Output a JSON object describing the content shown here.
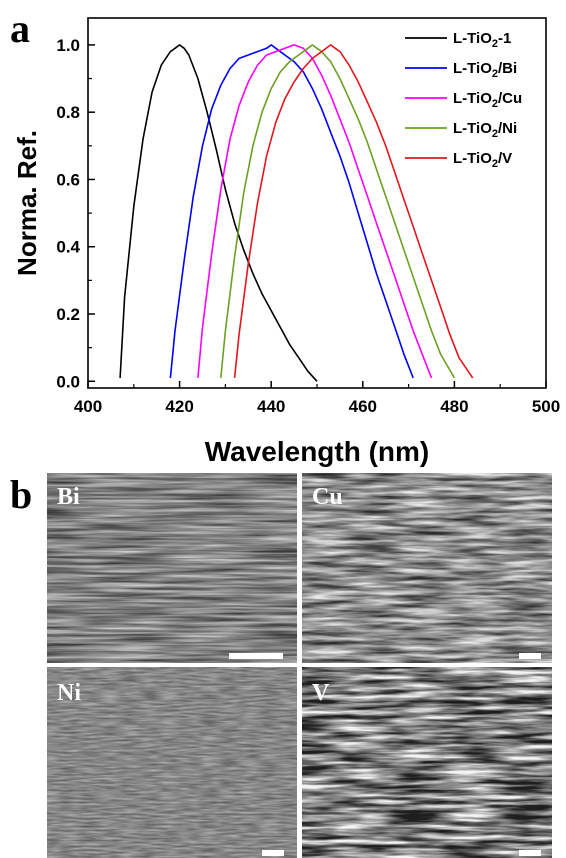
{
  "panels": {
    "a": "a",
    "b": "b"
  },
  "chart_data": {
    "type": "line",
    "title": "",
    "xlabel": "Wavelength (nm)",
    "ylabel": "Norma. Ref.",
    "xlim": [
      400,
      500
    ],
    "ylim": [
      -0.02,
      1.08
    ],
    "xticks": [
      400,
      420,
      440,
      460,
      480,
      500
    ],
    "yticks": [
      0.0,
      0.2,
      0.4,
      0.6,
      0.8,
      1.0
    ],
    "xtick_labels": [
      "400",
      "420",
      "440",
      "460",
      "480",
      "500"
    ],
    "ytick_labels": [
      "0.0",
      "0.2",
      "0.4",
      "0.6",
      "0.8",
      "1.0"
    ],
    "grid": false,
    "legend_position": "top-right",
    "series": [
      {
        "name": "L-TiO2-1",
        "name_main": "L-TiO",
        "name_sub": "2",
        "name_tail": "-1",
        "color": "#000000",
        "x": [
          407,
          408,
          410,
          412,
          414,
          416,
          418,
          419,
          420,
          421,
          422,
          424,
          426,
          428,
          430,
          432,
          434,
          436,
          438,
          440,
          442,
          444,
          446,
          448,
          450
        ],
        "y": [
          0.01,
          0.25,
          0.52,
          0.72,
          0.86,
          0.94,
          0.98,
          0.99,
          1.0,
          0.99,
          0.97,
          0.9,
          0.8,
          0.69,
          0.57,
          0.47,
          0.39,
          0.32,
          0.26,
          0.21,
          0.16,
          0.11,
          0.07,
          0.03,
          0.0
        ]
      },
      {
        "name": "L-TiO2/Bi",
        "name_main": "L-TiO",
        "name_sub": "2",
        "name_tail": "/Bi",
        "color": "#0000ff",
        "x": [
          418,
          419,
          421,
          423,
          425,
          427,
          429,
          431,
          433,
          435,
          437,
          439,
          440,
          441,
          443,
          445,
          447,
          449,
          451,
          453,
          455,
          457,
          459,
          461,
          463,
          465,
          467,
          469,
          471
        ],
        "y": [
          0.01,
          0.15,
          0.36,
          0.55,
          0.7,
          0.81,
          0.88,
          0.93,
          0.96,
          0.97,
          0.98,
          0.99,
          1.0,
          0.99,
          0.97,
          0.95,
          0.92,
          0.87,
          0.81,
          0.74,
          0.67,
          0.59,
          0.5,
          0.41,
          0.32,
          0.24,
          0.16,
          0.08,
          0.01
        ]
      },
      {
        "name": "L-TiO2/Cu",
        "name_main": "L-TiO",
        "name_sub": "2",
        "name_tail": "/Cu",
        "color": "#ff00ff",
        "x": [
          424,
          425,
          427,
          429,
          431,
          433,
          435,
          437,
          439,
          441,
          443,
          445,
          447,
          449,
          451,
          453,
          455,
          457,
          459,
          461,
          463,
          465,
          467,
          469,
          471,
          473,
          475
        ],
        "y": [
          0.01,
          0.16,
          0.38,
          0.57,
          0.72,
          0.82,
          0.89,
          0.94,
          0.97,
          0.98,
          0.99,
          1.0,
          0.99,
          0.96,
          0.91,
          0.85,
          0.78,
          0.71,
          0.63,
          0.55,
          0.47,
          0.39,
          0.31,
          0.23,
          0.15,
          0.08,
          0.01
        ]
      },
      {
        "name": "L-TiO2/Ni",
        "name_main": "L-TiO",
        "name_sub": "2",
        "name_tail": "/Ni",
        "color": "#6aa121",
        "x": [
          429,
          430,
          432,
          434,
          436,
          438,
          440,
          442,
          444,
          446,
          448,
          449,
          450,
          451,
          453,
          455,
          457,
          459,
          461,
          463,
          465,
          467,
          469,
          471,
          473,
          475,
          477,
          480
        ],
        "y": [
          0.01,
          0.15,
          0.37,
          0.56,
          0.7,
          0.8,
          0.87,
          0.92,
          0.95,
          0.97,
          0.99,
          1.0,
          0.99,
          0.98,
          0.95,
          0.9,
          0.84,
          0.78,
          0.71,
          0.63,
          0.55,
          0.47,
          0.39,
          0.31,
          0.23,
          0.15,
          0.08,
          0.01
        ]
      },
      {
        "name": "L-TiO2/V",
        "name_main": "L-TiO",
        "name_sub": "2",
        "name_tail": "/V",
        "color": "#e8141c",
        "x": [
          432,
          433,
          435,
          437,
          439,
          441,
          443,
          445,
          447,
          449,
          451,
          453,
          454,
          455,
          457,
          459,
          461,
          463,
          465,
          467,
          469,
          471,
          473,
          475,
          477,
          479,
          481,
          484
        ],
        "y": [
          0.01,
          0.14,
          0.35,
          0.53,
          0.67,
          0.77,
          0.84,
          0.89,
          0.93,
          0.96,
          0.98,
          1.0,
          0.99,
          0.98,
          0.94,
          0.89,
          0.83,
          0.77,
          0.7,
          0.62,
          0.54,
          0.46,
          0.38,
          0.3,
          0.22,
          0.14,
          0.07,
          0.01
        ]
      }
    ]
  },
  "sem_images": [
    {
      "label": "Bi"
    },
    {
      "label": "Cu"
    },
    {
      "label": "Ni"
    },
    {
      "label": "V"
    }
  ]
}
